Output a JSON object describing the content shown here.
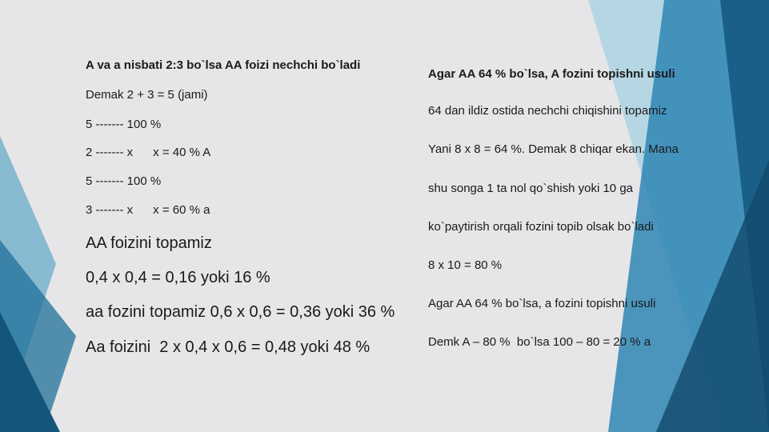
{
  "left": {
    "lines": [
      "A va a nisbati 2:3 bo`lsa AA foizi nechchi bo`ladi",
      "Demak 2 + 3 = 5 (jami)",
      "5 ------- 100 %",
      "2 ------- x      x = 40 % A",
      "5 ------- 100 %",
      "3 ------- x      x = 60 % a",
      "AA foizini topamiz",
      "0,4 x 0,4 = 0,16 yoki 16 %",
      "aa fozini topamiz 0,6 x 0,6 = 0,36 yoki 36 %",
      "Aa foizini  2 x 0,4 x 0,6 = 0,48 yoki 48 %"
    ]
  },
  "right": {
    "lines": [
      "Agar AA 64 % bo`lsa, A fozini topishni usuli",
      "64 dan ildiz ostida nechchi chiqishini topamiz",
      "Yani 8 x 8 = 64 %. Demak 8 chiqar ekan. Mana",
      "shu songa 1 ta nol qo`shish yoki 10 ga",
      "ko`paytirish orqali fozini topib olsak bo`ladi",
      "8 x 10 = 80 %",
      "Agar AA 64 % bo`lsa, a fozini topishni usuli",
      "Demk A – 80 %  bo`lsa 100 – 80 = 20 % a"
    ]
  }
}
